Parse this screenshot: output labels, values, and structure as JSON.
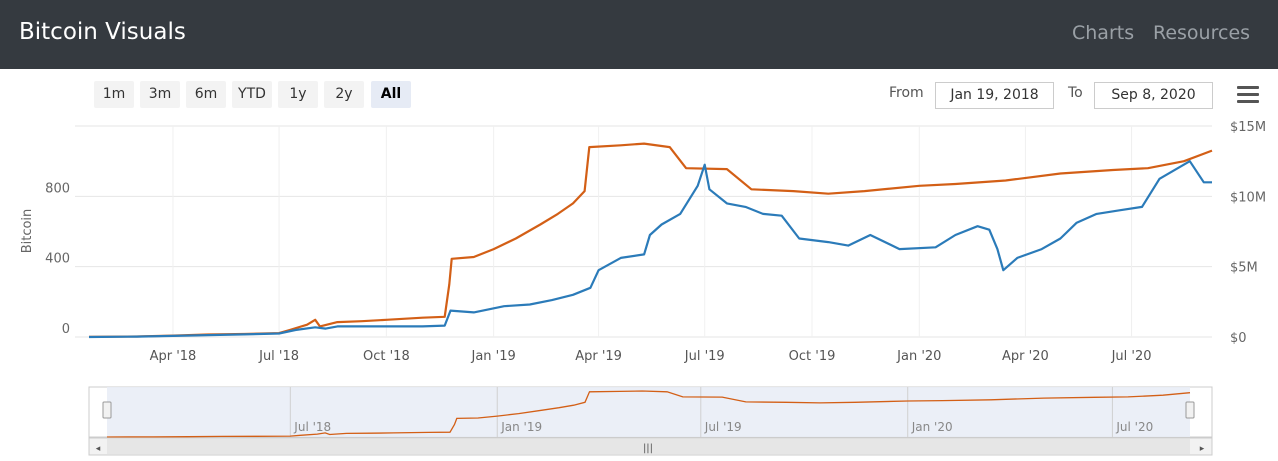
{
  "header": {
    "title": "Bitcoin Visuals",
    "nav": [
      "Charts",
      "Resources"
    ]
  },
  "toolbar": {
    "range_buttons": [
      "1m",
      "3m",
      "6m",
      "YTD",
      "1y",
      "2y",
      "All"
    ],
    "selected_range": "All",
    "from_label": "From",
    "from_value": "Jan 19, 2018",
    "to_label": "To",
    "to_value": "Sep 8, 2020",
    "menu_icon": "hamburger-menu-icon"
  },
  "chart_data": {
    "type": "line",
    "ylabel": "Bitcoin",
    "y_ticks": [
      "0",
      "400",
      "800"
    ],
    "y2_ticks": [
      "$0",
      "$5M",
      "$10M",
      "$15M"
    ],
    "ylim": [
      0,
      1200
    ],
    "y2lim": [
      0,
      15000000
    ],
    "x_range": [
      "2018-01-19",
      "2020-09-08"
    ],
    "x_ticks": [
      "Apr '18",
      "Jul '18",
      "Oct '18",
      "Jan '19",
      "Apr '19",
      "Jul '19",
      "Oct '19",
      "Jan '20",
      "Apr '20",
      "Jul '20"
    ],
    "navigator_ticks": [
      "Jul '18",
      "Jan '19",
      "Jul '19",
      "Jan '20",
      "Jul '20"
    ],
    "grid": true,
    "series": [
      {
        "axis": "left",
        "color": "#d35f16",
        "points": [
          [
            "2018-01-19",
            1
          ],
          [
            "2018-03-01",
            3
          ],
          [
            "2018-04-01",
            8
          ],
          [
            "2018-05-01",
            14
          ],
          [
            "2018-06-01",
            17
          ],
          [
            "2018-07-01",
            22
          ],
          [
            "2018-07-10",
            40
          ],
          [
            "2018-07-25",
            70
          ],
          [
            "2018-08-01",
            98
          ],
          [
            "2018-08-05",
            60
          ],
          [
            "2018-08-20",
            85
          ],
          [
            "2018-09-10",
            90
          ],
          [
            "2018-10-01",
            98
          ],
          [
            "2018-11-01",
            110
          ],
          [
            "2018-11-20",
            115
          ],
          [
            "2018-11-24",
            300
          ],
          [
            "2018-11-26",
            445
          ],
          [
            "2018-12-15",
            455
          ],
          [
            "2019-01-01",
            500
          ],
          [
            "2019-01-20",
            560
          ],
          [
            "2019-02-10",
            640
          ],
          [
            "2019-02-25",
            700
          ],
          [
            "2019-03-10",
            760
          ],
          [
            "2019-03-20",
            830
          ],
          [
            "2019-03-24",
            1080
          ],
          [
            "2019-04-20",
            1090
          ],
          [
            "2019-05-10",
            1100
          ],
          [
            "2019-06-01",
            1080
          ],
          [
            "2019-06-15",
            960
          ],
          [
            "2019-07-20",
            955
          ],
          [
            "2019-08-10",
            840
          ],
          [
            "2019-09-15",
            830
          ],
          [
            "2019-10-15",
            815
          ],
          [
            "2019-11-15",
            830
          ],
          [
            "2020-01-01",
            860
          ],
          [
            "2020-02-01",
            870
          ],
          [
            "2020-03-15",
            890
          ],
          [
            "2020-05-01",
            930
          ],
          [
            "2020-06-15",
            950
          ],
          [
            "2020-07-15",
            960
          ],
          [
            "2020-08-15",
            1000
          ],
          [
            "2020-09-08",
            1060
          ]
        ]
      },
      {
        "axis": "left",
        "color": "#2b7bb9",
        "points": [
          [
            "2018-01-19",
            0
          ],
          [
            "2018-03-01",
            2
          ],
          [
            "2018-04-01",
            6
          ],
          [
            "2018-05-01",
            11
          ],
          [
            "2018-06-01",
            15
          ],
          [
            "2018-07-01",
            20
          ],
          [
            "2018-07-15",
            40
          ],
          [
            "2018-08-01",
            55
          ],
          [
            "2018-08-10",
            48
          ],
          [
            "2018-08-20",
            60
          ],
          [
            "2018-10-01",
            60
          ],
          [
            "2018-11-01",
            60
          ],
          [
            "2018-11-20",
            65
          ],
          [
            "2018-11-25",
            150
          ],
          [
            "2018-12-15",
            140
          ],
          [
            "2019-01-10",
            175
          ],
          [
            "2019-02-01",
            185
          ],
          [
            "2019-02-20",
            210
          ],
          [
            "2019-03-10",
            240
          ],
          [
            "2019-03-25",
            280
          ],
          [
            "2019-04-01",
            380
          ],
          [
            "2019-04-20",
            450
          ],
          [
            "2019-05-10",
            470
          ],
          [
            "2019-05-15",
            580
          ],
          [
            "2019-05-25",
            640
          ],
          [
            "2019-06-10",
            700
          ],
          [
            "2019-06-25",
            860
          ],
          [
            "2019-07-01",
            980
          ],
          [
            "2019-07-05",
            840
          ],
          [
            "2019-07-20",
            760
          ],
          [
            "2019-08-05",
            740
          ],
          [
            "2019-08-20",
            700
          ],
          [
            "2019-09-05",
            690
          ],
          [
            "2019-09-20",
            560
          ],
          [
            "2019-10-15",
            540
          ],
          [
            "2019-11-01",
            520
          ],
          [
            "2019-11-20",
            580
          ],
          [
            "2019-12-15",
            500
          ],
          [
            "2020-01-15",
            510
          ],
          [
            "2020-02-01",
            580
          ],
          [
            "2020-02-20",
            630
          ],
          [
            "2020-03-01",
            610
          ],
          [
            "2020-03-08",
            500
          ],
          [
            "2020-03-13",
            380
          ],
          [
            "2020-03-25",
            450
          ],
          [
            "2020-04-15",
            500
          ],
          [
            "2020-05-01",
            560
          ],
          [
            "2020-05-15",
            650
          ],
          [
            "2020-06-01",
            700
          ],
          [
            "2020-06-20",
            720
          ],
          [
            "2020-07-10",
            740
          ],
          [
            "2020-07-25",
            900
          ],
          [
            "2020-08-20",
            1000
          ],
          [
            "2020-09-01",
            880
          ],
          [
            "2020-09-08",
            880
          ]
        ]
      }
    ]
  }
}
